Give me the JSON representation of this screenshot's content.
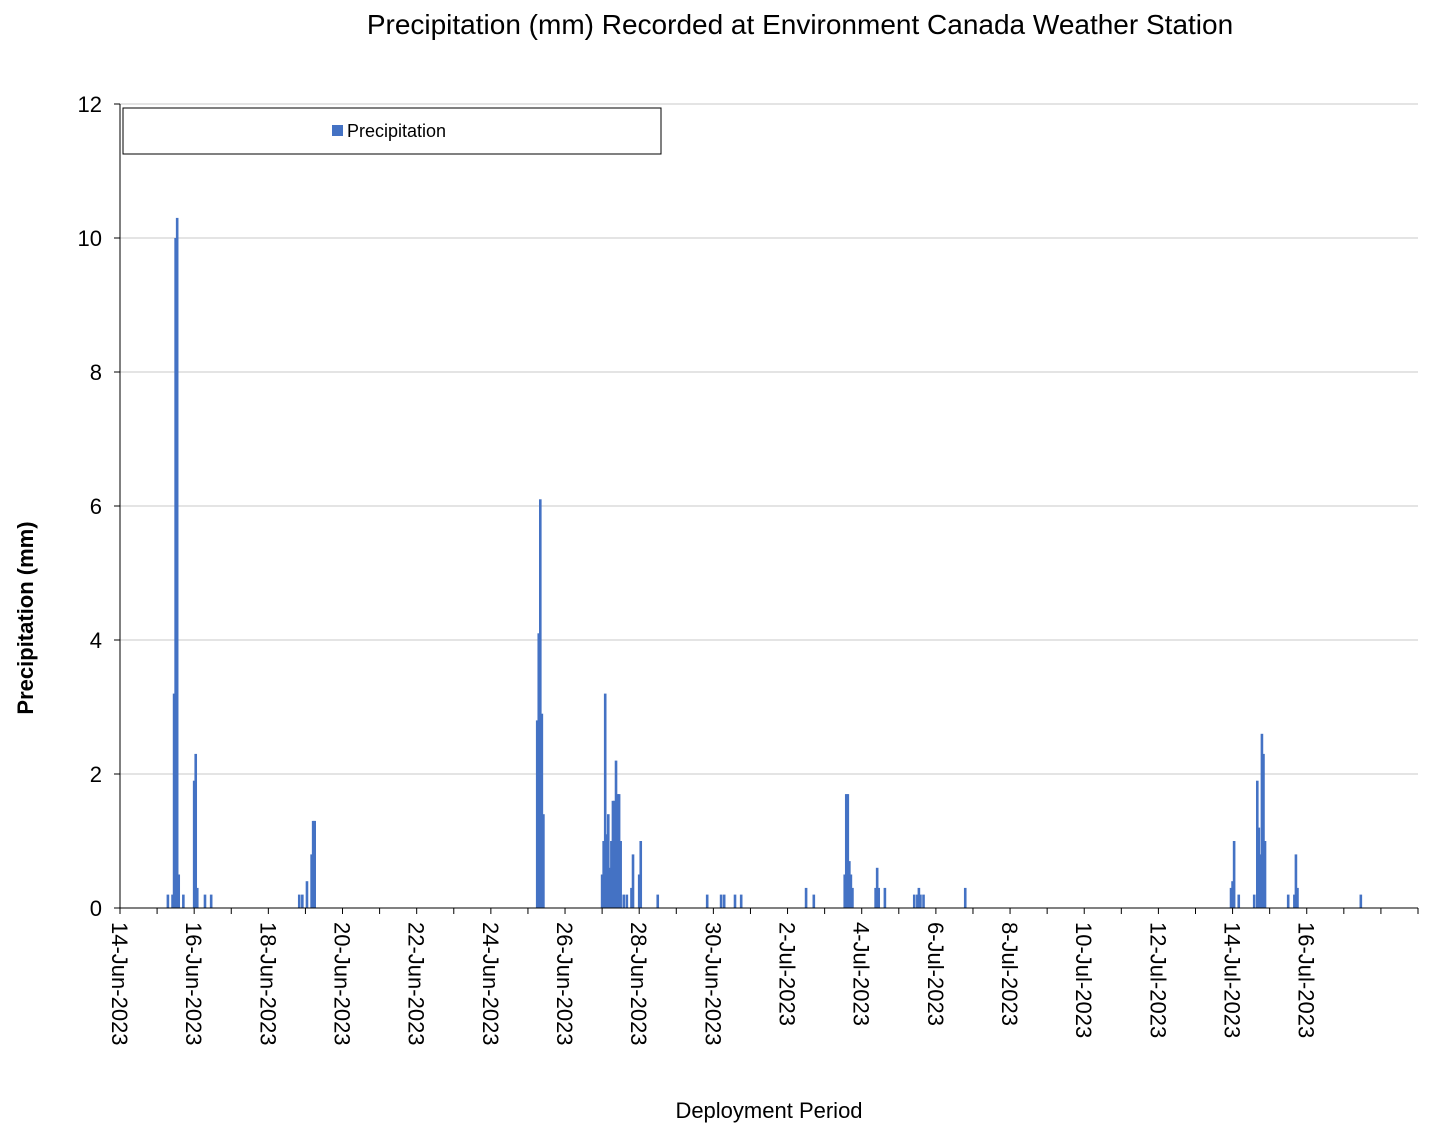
{
  "chart_data": {
    "type": "bar",
    "title": "Precipitation (mm) Recorded at Environment Canada Weather Station",
    "xlabel": "Deployment Period",
    "ylabel": "Precipitation (mm)",
    "ylim": [
      0,
      12
    ],
    "yticks": [
      "0",
      "2",
      "4",
      "6",
      "8",
      "10",
      "12"
    ],
    "xlim": [
      "2023-06-14",
      "2023-07-19"
    ],
    "xtick_labels": [
      "14-Jun-2023",
      "16-Jun-2023",
      "18-Jun-2023",
      "20-Jun-2023",
      "22-Jun-2023",
      "24-Jun-2023",
      "26-Jun-2023",
      "28-Jun-2023",
      "30-Jun-2023",
      "2-Jul-2023",
      "4-Jul-2023",
      "6-Jul-2023",
      "8-Jul-2023",
      "10-Jul-2023",
      "12-Jul-2023",
      "14-Jul-2023",
      "16-Jul-2023"
    ],
    "grid": true,
    "legend_position": "top-left",
    "series": [
      {
        "name": "Precipitation",
        "color": "#4472C4",
        "points": [
          [
            "2023-06-15 07:00",
            0.2
          ],
          [
            "2023-06-15 10:00",
            0.2
          ],
          [
            "2023-06-15 11:00",
            3.2
          ],
          [
            "2023-06-15 12:00",
            10.0
          ],
          [
            "2023-06-15 13:00",
            10.3
          ],
          [
            "2023-06-15 14:00",
            0.5
          ],
          [
            "2023-06-15 17:00",
            0.2
          ],
          [
            "2023-06-16 00:00",
            1.9
          ],
          [
            "2023-06-16 01:00",
            2.3
          ],
          [
            "2023-06-16 02:00",
            0.3
          ],
          [
            "2023-06-16 07:00",
            0.2
          ],
          [
            "2023-06-16 11:00",
            0.2
          ],
          [
            "2023-06-18 20:00",
            0.2
          ],
          [
            "2023-06-18 22:00",
            0.2
          ],
          [
            "2023-06-19 01:00",
            0.4
          ],
          [
            "2023-06-19 04:00",
            0.8
          ],
          [
            "2023-06-19 05:00",
            1.3
          ],
          [
            "2023-06-19 06:00",
            1.3
          ],
          [
            "2023-06-25 06:00",
            2.8
          ],
          [
            "2023-06-25 07:00",
            4.1
          ],
          [
            "2023-06-25 08:00",
            6.1
          ],
          [
            "2023-06-25 09:00",
            2.9
          ],
          [
            "2023-06-25 10:00",
            1.4
          ],
          [
            "2023-06-27 00:00",
            0.5
          ],
          [
            "2023-06-27 01:00",
            1.0
          ],
          [
            "2023-06-27 02:00",
            3.2
          ],
          [
            "2023-06-27 03:00",
            1.1
          ],
          [
            "2023-06-27 04:00",
            1.4
          ],
          [
            "2023-06-27 05:00",
            0.6
          ],
          [
            "2023-06-27 06:00",
            1.0
          ],
          [
            "2023-06-27 07:00",
            1.6
          ],
          [
            "2023-06-27 08:00",
            1.6
          ],
          [
            "2023-06-27 09:00",
            2.2
          ],
          [
            "2023-06-27 10:00",
            1.7
          ],
          [
            "2023-06-27 11:00",
            1.7
          ],
          [
            "2023-06-27 12:00",
            1.0
          ],
          [
            "2023-06-27 14:00",
            0.2
          ],
          [
            "2023-06-27 16:00",
            0.2
          ],
          [
            "2023-06-27 19:00",
            0.3
          ],
          [
            "2023-06-27 20:00",
            0.8
          ],
          [
            "2023-06-28 00:00",
            0.5
          ],
          [
            "2023-06-28 01:00",
            1.0
          ],
          [
            "2023-06-28 12:00",
            0.2
          ],
          [
            "2023-06-29 20:00",
            0.2
          ],
          [
            "2023-06-30 05:00",
            0.2
          ],
          [
            "2023-06-30 07:00",
            0.2
          ],
          [
            "2023-06-30 14:00",
            0.2
          ],
          [
            "2023-06-30 18:00",
            0.2
          ],
          [
            "2023-07-02 12:00",
            0.3
          ],
          [
            "2023-07-02 17:00",
            0.2
          ],
          [
            "2023-07-03 13:00",
            0.5
          ],
          [
            "2023-07-03 14:00",
            1.7
          ],
          [
            "2023-07-03 15:00",
            1.7
          ],
          [
            "2023-07-03 16:00",
            0.7
          ],
          [
            "2023-07-03 17:00",
            0.5
          ],
          [
            "2023-07-03 18:00",
            0.3
          ],
          [
            "2023-07-04 09:00",
            0.3
          ],
          [
            "2023-07-04 10:00",
            0.6
          ],
          [
            "2023-07-04 11:00",
            0.3
          ],
          [
            "2023-07-04 15:00",
            0.3
          ],
          [
            "2023-07-05 10:00",
            0.2
          ],
          [
            "2023-07-05 12:00",
            0.2
          ],
          [
            "2023-07-05 13:00",
            0.3
          ],
          [
            "2023-07-05 14:00",
            0.2
          ],
          [
            "2023-07-05 16:00",
            0.2
          ],
          [
            "2023-07-06 19:00",
            0.3
          ],
          [
            "2023-07-13 23:00",
            0.3
          ],
          [
            "2023-07-14 00:00",
            0.4
          ],
          [
            "2023-07-14 01:00",
            1.0
          ],
          [
            "2023-07-14 04:00",
            0.2
          ],
          [
            "2023-07-14 14:00",
            0.2
          ],
          [
            "2023-07-14 16:00",
            1.9
          ],
          [
            "2023-07-14 17:00",
            1.2
          ],
          [
            "2023-07-14 18:00",
            0.8
          ],
          [
            "2023-07-14 19:00",
            2.6
          ],
          [
            "2023-07-14 20:00",
            2.3
          ],
          [
            "2023-07-14 21:00",
            1.0
          ],
          [
            "2023-07-15 12:00",
            0.2
          ],
          [
            "2023-07-15 16:00",
            0.2
          ],
          [
            "2023-07-15 17:00",
            0.8
          ],
          [
            "2023-07-15 18:00",
            0.3
          ],
          [
            "2023-07-17 11:00",
            0.2
          ]
        ]
      }
    ]
  }
}
